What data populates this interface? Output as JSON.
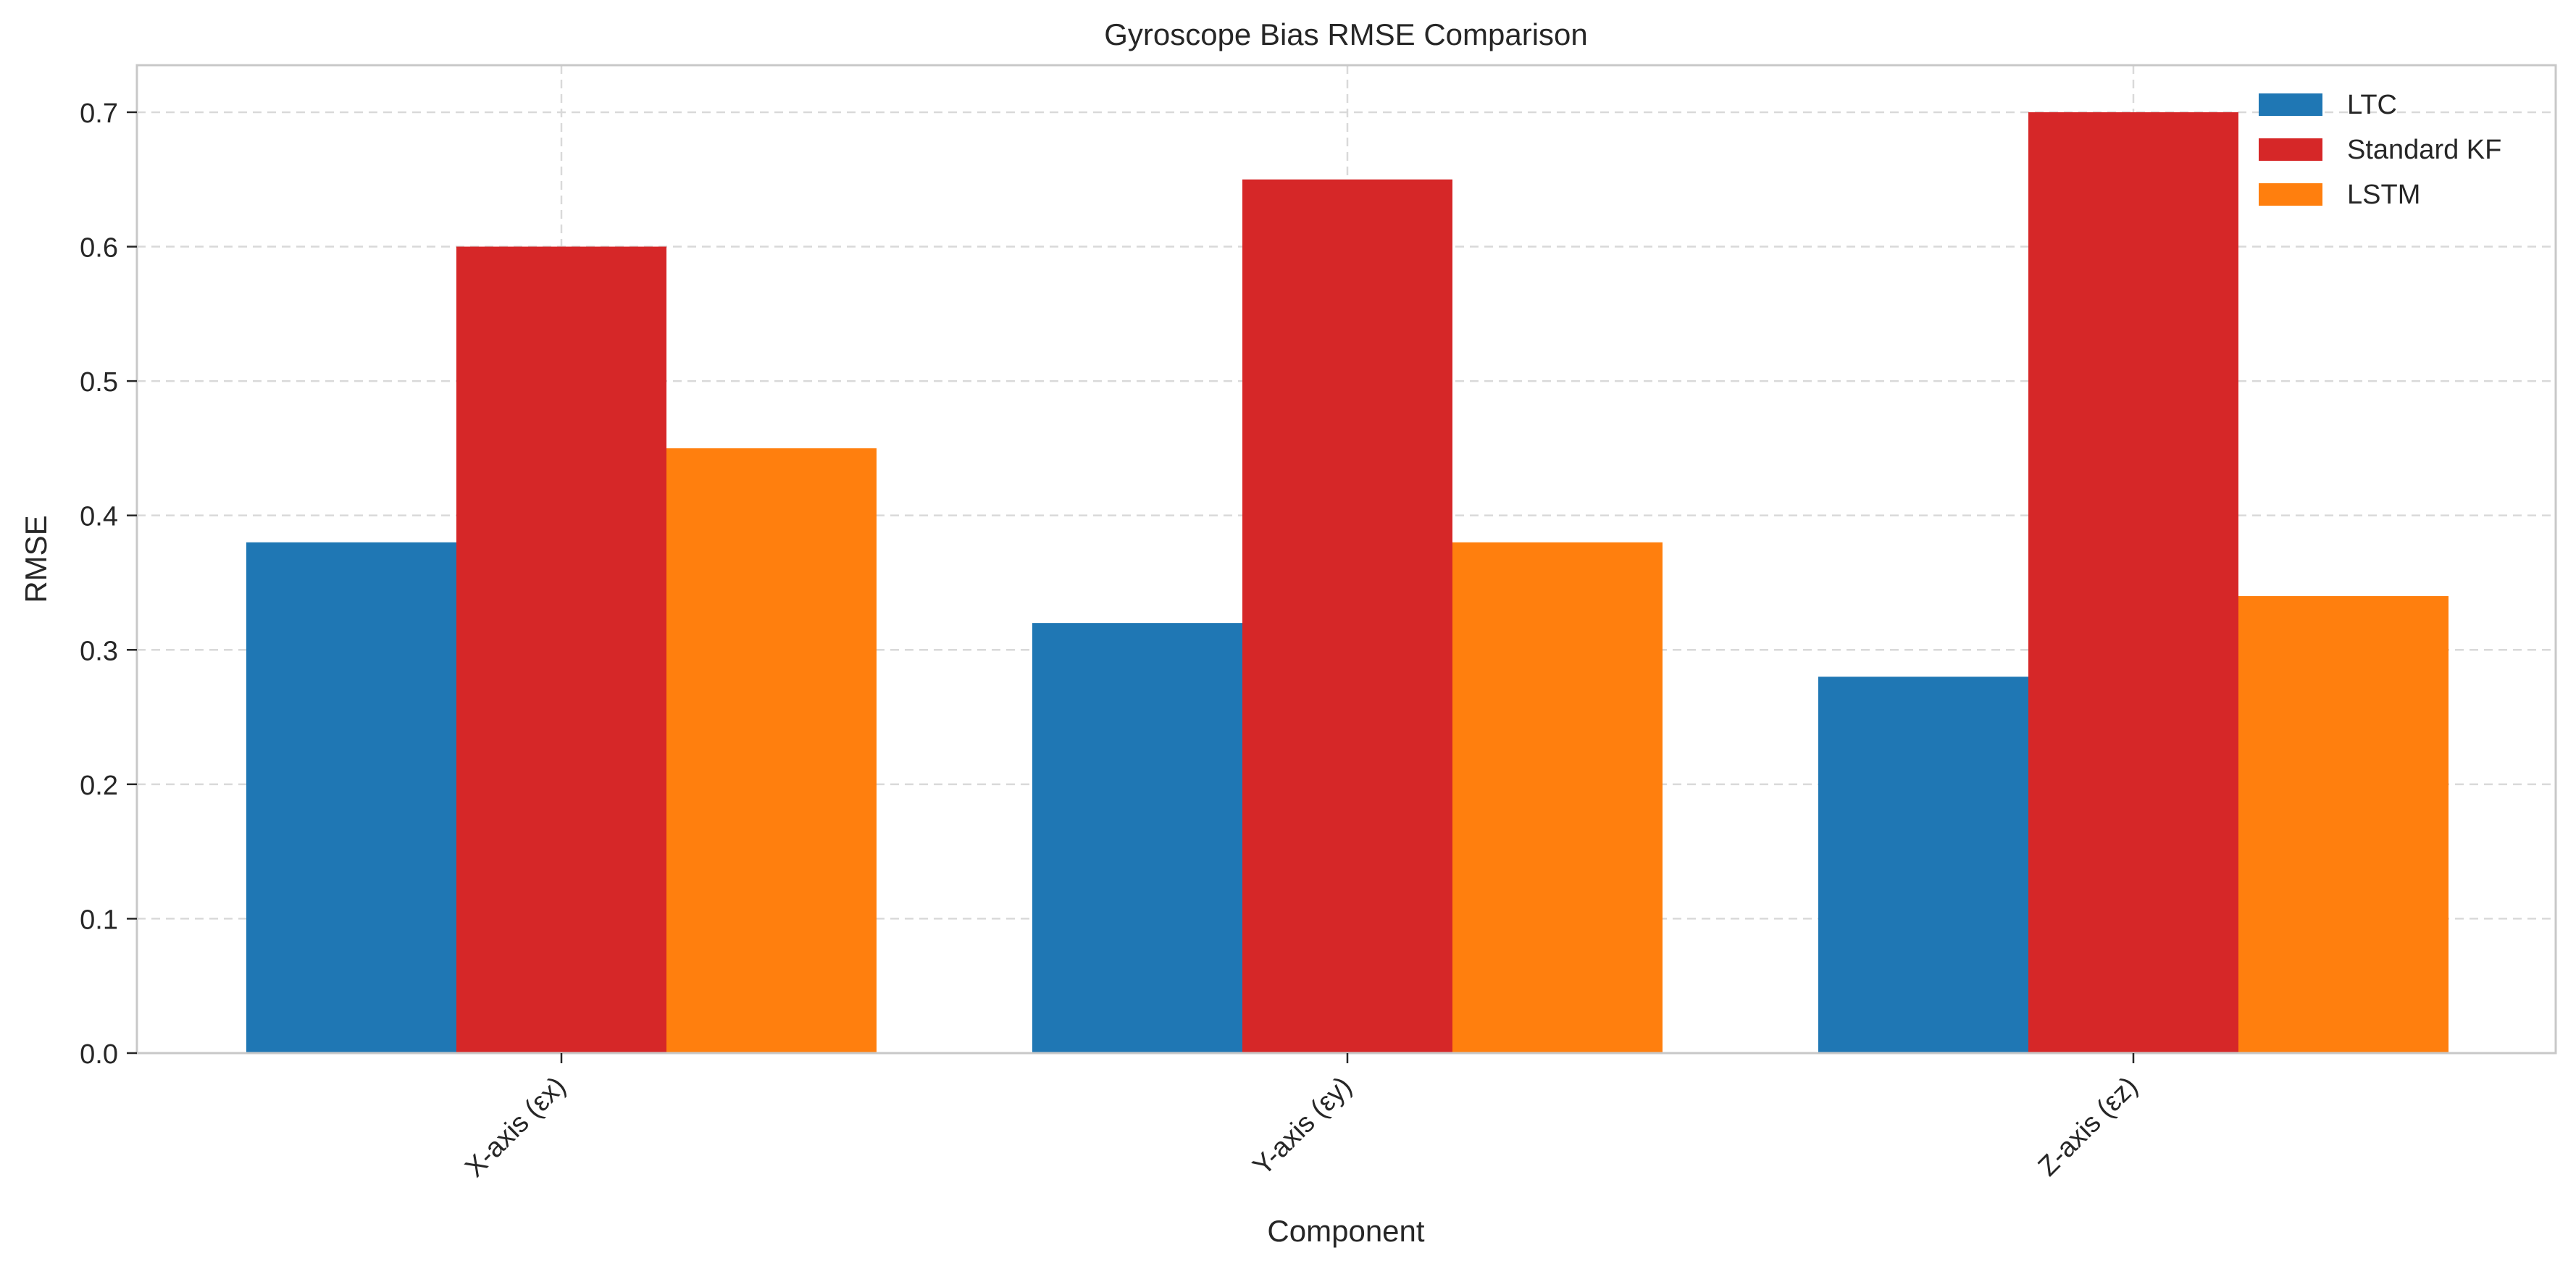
{
  "chart_data": {
    "type": "bar",
    "title": "Gyroscope Bias RMSE Comparison",
    "xlabel": "Component",
    "ylabel": "RMSE",
    "categories": [
      "X-axis (εx)",
      "Y-axis (εy)",
      "Z-axis (εz)"
    ],
    "series": [
      {
        "name": "LTC",
        "values": [
          0.38,
          0.32,
          0.28
        ],
        "color": "#1f77b4"
      },
      {
        "name": "Standard KF",
        "values": [
          0.6,
          0.65,
          0.7
        ],
        "color": "#d62728"
      },
      {
        "name": "LSTM",
        "values": [
          0.45,
          0.38,
          0.34
        ],
        "color": "#ff7f0e"
      }
    ],
    "ylim": [
      0,
      0.735
    ],
    "yticks": [
      "0.0",
      "0.1",
      "0.2",
      "0.3",
      "0.4",
      "0.5",
      "0.6",
      "0.7"
    ],
    "grid": true,
    "legend_position": "top-right"
  }
}
